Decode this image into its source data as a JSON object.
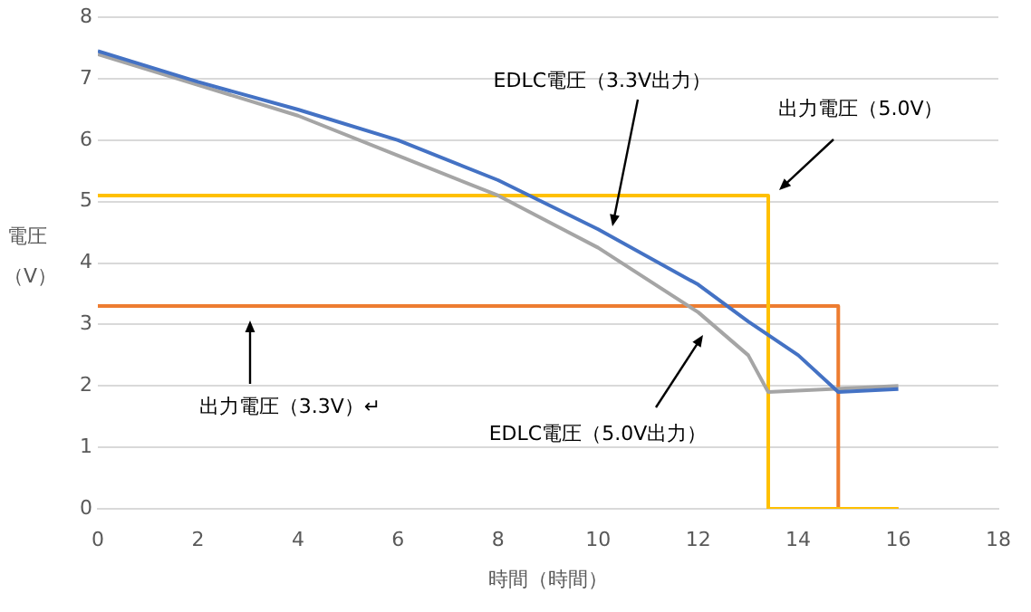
{
  "chart_data": {
    "type": "line",
    "xlabel": "時間（時間）",
    "ylabel": "電圧（V）",
    "xlim": [
      0,
      18
    ],
    "xticks": [
      0,
      2,
      4,
      6,
      8,
      10,
      12,
      14,
      16,
      18
    ],
    "ylim": [
      0,
      8
    ],
    "yticks": [
      0,
      1,
      2,
      3,
      4,
      5,
      6,
      7,
      8
    ],
    "grid": "y",
    "marker": "none",
    "line_style": "solid",
    "legend": false,
    "series": [
      {
        "color": "#4472c4",
        "x": [
          0,
          2,
          4,
          6,
          8,
          10,
          12,
          13,
          14,
          14.8,
          16
        ],
        "values": [
          7.45,
          6.95,
          6.5,
          6.0,
          5.35,
          4.55,
          3.65,
          3.05,
          2.5,
          1.9,
          1.95
        ]
      },
      {
        "color": "#a5a5a5",
        "x": [
          0,
          2,
          4,
          6,
          8,
          10,
          12,
          13,
          13.4,
          16
        ],
        "values": [
          7.4,
          6.9,
          6.4,
          5.75,
          5.1,
          4.25,
          3.2,
          2.5,
          1.9,
          2.0
        ]
      },
      {
        "color": "#ffc000",
        "x": [
          0,
          13.4,
          13.4,
          16
        ],
        "values": [
          5.1,
          5.1,
          0,
          0
        ]
      },
      {
        "color": "#ed7d31",
        "x": [
          0,
          14.8,
          14.8,
          16
        ],
        "values": [
          3.3,
          3.3,
          0,
          0
        ]
      }
    ],
    "annotations": [
      {
        "text": "EDLC電圧（3.3V出力）",
        "x": 10.3,
        "y": 4.6
      },
      "出力電圧（5.0V）",
      "出力電圧（3.3V）↵",
      "EDLC電圧（5.0V出力）"
    ]
  }
}
